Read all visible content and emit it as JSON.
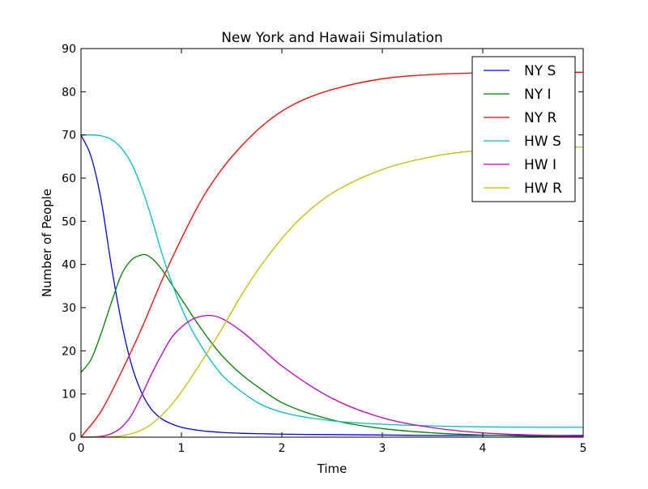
{
  "chart_data": {
    "type": "line",
    "title": "New York and Hawaii Simulation",
    "xlabel": "Time",
    "ylabel": "Number of People",
    "xlim": [
      0,
      5
    ],
    "ylim": [
      0,
      90
    ],
    "xticks": [
      0,
      1,
      2,
      3,
      4,
      5
    ],
    "yticks": [
      0,
      10,
      20,
      30,
      40,
      50,
      60,
      70,
      80,
      90
    ],
    "grid": false,
    "legend_position": "top-right",
    "series": [
      {
        "name": "NY S",
        "color": "#0000ff",
        "x": [
          0,
          0.1,
          0.2,
          0.3,
          0.4,
          0.5,
          0.6,
          0.7,
          0.8,
          0.9,
          1.0,
          1.2,
          1.4,
          1.6,
          1.8,
          2.0,
          2.5,
          3.0,
          3.5,
          4.0,
          4.5,
          5.0
        ],
        "y": [
          70,
          65,
          55,
          40,
          27,
          17,
          10.5,
          6.5,
          4.3,
          3.1,
          2.3,
          1.5,
          1.1,
          0.9,
          0.8,
          0.7,
          0.6,
          0.5,
          0.4,
          0.4,
          0.4,
          0.4
        ]
      },
      {
        "name": "NY I",
        "color": "#008000",
        "x": [
          0,
          0.1,
          0.2,
          0.3,
          0.4,
          0.5,
          0.6,
          0.63,
          0.7,
          0.8,
          0.9,
          1.0,
          1.2,
          1.4,
          1.6,
          1.8,
          2.0,
          2.5,
          3.0,
          3.5,
          4.0,
          4.5,
          5.0
        ],
        "y": [
          15,
          18,
          24,
          31,
          37.5,
          41,
          42.2,
          42.3,
          41.5,
          39,
          35.5,
          32,
          25,
          19,
          14.5,
          11,
          8,
          4,
          2,
          1,
          0.5,
          0.2,
          0.1
        ]
      },
      {
        "name": "NY R",
        "color": "#ff0000",
        "x": [
          0,
          0.2,
          0.4,
          0.6,
          0.8,
          1.0,
          1.2,
          1.4,
          1.6,
          1.8,
          2.0,
          2.2,
          2.5,
          3.0,
          3.5,
          4.0,
          4.5,
          5.0
        ],
        "y": [
          0,
          6,
          15,
          25,
          36,
          46,
          55,
          62,
          67.5,
          72,
          75.5,
          78,
          80.5,
          83,
          84,
          84.4,
          84.5,
          84.5
        ]
      },
      {
        "name": "HW S",
        "color": "#00bfbf",
        "x": [
          0,
          0.1,
          0.2,
          0.3,
          0.4,
          0.5,
          0.6,
          0.7,
          0.8,
          0.9,
          1.0,
          1.1,
          1.2,
          1.3,
          1.4,
          1.6,
          1.8,
          2.0,
          2.5,
          3.0,
          3.5,
          4.0,
          4.5,
          5.0
        ],
        "y": [
          70,
          70,
          69.8,
          69,
          67,
          63.5,
          58,
          51,
          43,
          36,
          30,
          25,
          21,
          17.5,
          14.5,
          10.5,
          7.5,
          5.8,
          3.8,
          3.0,
          2.6,
          2.4,
          2.3,
          2.3
        ]
      },
      {
        "name": "HW I",
        "color": "#bf00bf",
        "x": [
          0,
          0.2,
          0.3,
          0.4,
          0.5,
          0.6,
          0.7,
          0.8,
          0.9,
          1.0,
          1.1,
          1.2,
          1.28,
          1.4,
          1.6,
          1.8,
          2.0,
          2.5,
          3.0,
          3.5,
          4.0,
          4.5,
          5.0
        ],
        "y": [
          0,
          0.2,
          0.8,
          2.2,
          5,
          9.5,
          14.5,
          19,
          23,
          25.5,
          27.2,
          28,
          28.2,
          27.5,
          24.5,
          20.5,
          16.5,
          9,
          4.5,
          2.2,
          1.0,
          0.5,
          0.2
        ]
      },
      {
        "name": "HW R",
        "color": "#bfbf00",
        "x": [
          0,
          0.3,
          0.4,
          0.5,
          0.6,
          0.7,
          0.8,
          0.9,
          1.0,
          1.2,
          1.4,
          1.6,
          1.8,
          2.0,
          2.2,
          2.5,
          3.0,
          3.5,
          4.0,
          4.5,
          5.0
        ],
        "y": [
          0,
          0.1,
          0.3,
          0.8,
          1.6,
          3,
          5,
          7.5,
          10.5,
          17.5,
          25,
          33,
          40,
          46,
          51,
          56.5,
          62,
          65,
          66.5,
          67,
          67.2
        ]
      }
    ]
  }
}
